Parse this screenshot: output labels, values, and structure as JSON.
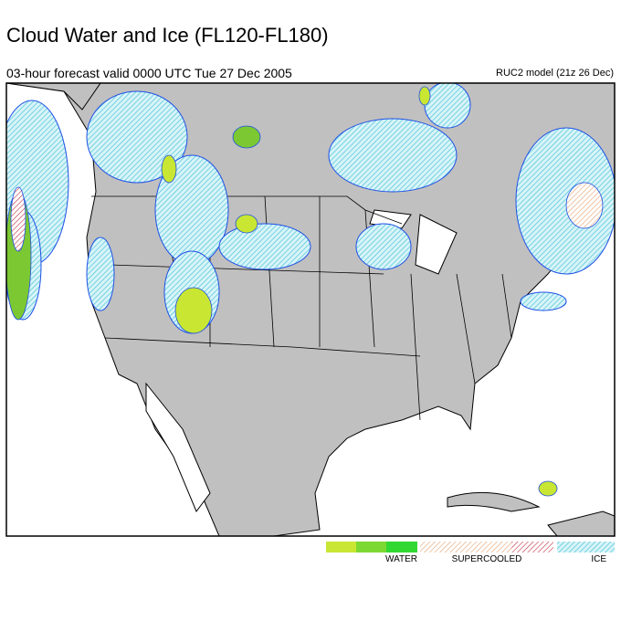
{
  "header": {
    "title": "Cloud Water and Ice (FL120-FL180)",
    "subtitle": "03-hour forecast valid 0000 UTC Tue 27 Dec 2005",
    "model": "RUC2 model (21z 26 Dec)"
  },
  "legend": {
    "items": [
      {
        "label": "WATER"
      },
      {
        "label": "SUPERCOOLED"
      },
      {
        "label": "ICE"
      }
    ]
  }
}
